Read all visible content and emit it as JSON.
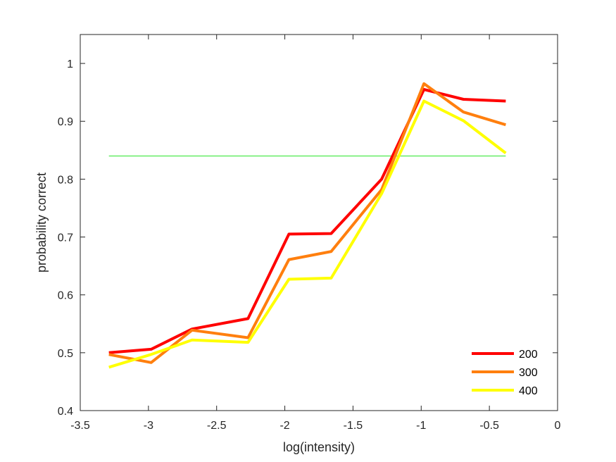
{
  "chart_data": {
    "type": "line",
    "title": "",
    "xlabel": "log(intensity)",
    "ylabel": "probability correct",
    "xlim": [
      -3.5,
      0
    ],
    "ylim": [
      0.4,
      1.05
    ],
    "xticks": [
      -3.5,
      -3,
      -2.5,
      -2,
      -1.5,
      -1,
      -0.5,
      0
    ],
    "xtick_labels": [
      "-3.5",
      "-3",
      "-2.5",
      "-2",
      "-1.5",
      "-1",
      "-0.5",
      "0"
    ],
    "yticks": [
      0.4,
      0.5,
      0.6,
      0.7,
      0.8,
      0.9,
      1
    ],
    "ytick_labels": [
      "0.4",
      "0.5",
      "0.6",
      "0.7",
      "0.8",
      "0.9",
      "1"
    ],
    "grid": false,
    "legend_position": "bottom-right",
    "x": [
      -3.29,
      -2.98,
      -2.68,
      -2.27,
      -1.97,
      -1.66,
      -1.29,
      -0.98,
      -0.69,
      -0.38
    ],
    "series": [
      {
        "name": "200",
        "color": "#ff0000",
        "values": [
          0.5,
          0.506,
          0.541,
          0.559,
          0.705,
          0.706,
          0.8,
          0.955,
          0.938,
          0.935
        ]
      },
      {
        "name": "300",
        "color": "#ff7f0e",
        "values": [
          0.497,
          0.483,
          0.539,
          0.526,
          0.661,
          0.675,
          0.782,
          0.965,
          0.916,
          0.894
        ]
      },
      {
        "name": "400",
        "color": "#ffff00",
        "values": [
          0.475,
          0.497,
          0.522,
          0.518,
          0.627,
          0.629,
          0.775,
          0.935,
          0.901,
          0.845
        ]
      }
    ],
    "reference_line": {
      "y": 0.84,
      "x_range": [
        -3.29,
        -0.38
      ],
      "color": "#66ee66"
    }
  }
}
